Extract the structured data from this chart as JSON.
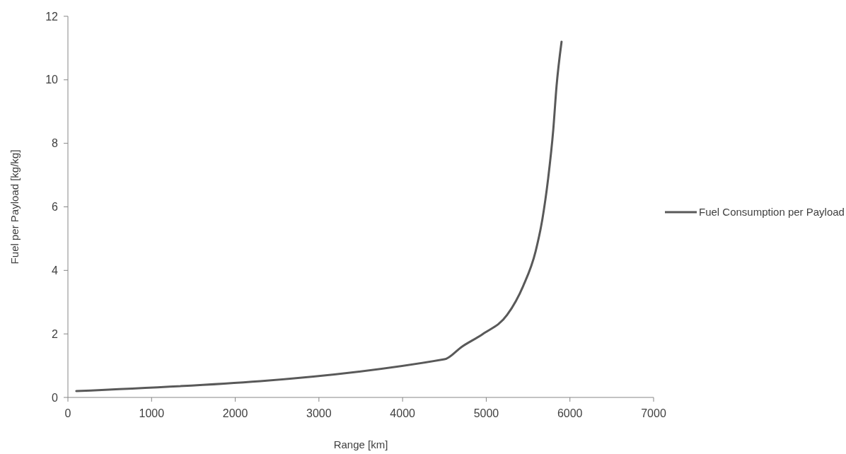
{
  "chart_data": {
    "type": "line",
    "xlabel": "Range [km]",
    "ylabel": "Fuel per Payload [kg/kg]",
    "series": [
      {
        "name": "Fuel Consumption per Payload",
        "color": "#595959",
        "x": [
          100,
          4500,
          4710,
          4960,
          5250,
          5440,
          5590,
          5670,
          5740,
          5800,
          5840,
          5900
        ],
        "values": [
          0.2,
          1.2,
          1.6,
          2.0,
          2.6,
          3.5,
          4.6,
          5.6,
          6.9,
          8.4,
          9.8,
          11.2
        ]
      }
    ],
    "xlim": [
      0,
      7000
    ],
    "xticks": [
      0,
      1000,
      2000,
      3000,
      4000,
      5000,
      6000,
      7000
    ],
    "ylim": [
      0,
      12
    ],
    "yticks": [
      0,
      2,
      4,
      6,
      8,
      10,
      12
    ],
    "legend": "right",
    "grid": false,
    "marker": "none",
    "line_style": "solid"
  }
}
